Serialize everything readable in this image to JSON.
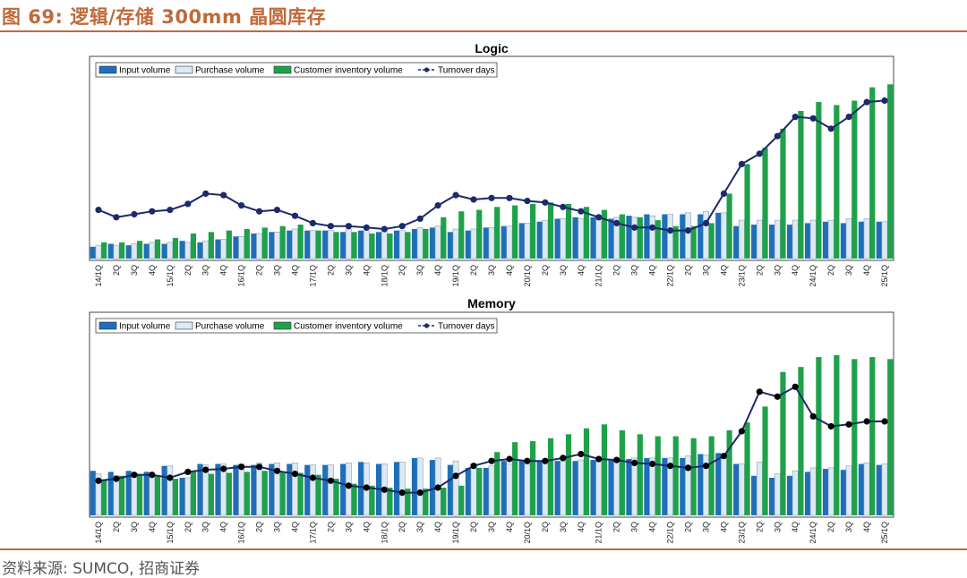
{
  "header": {
    "title": "图 69: 逻辑/存储 300mm 晶圆库存"
  },
  "footer": {
    "source": "资料来源: SUMCO, 招商证券"
  },
  "colors": {
    "accent": "#c0693a",
    "input": "#1f6fb8",
    "purchase": "#dde9f4",
    "inventory": "#1fa14a",
    "turnover": "#1b2a6b"
  },
  "chart_data": [
    {
      "type": "bar",
      "title": "Logic",
      "legend": [
        "Input volume",
        "Purchase volume",
        "Customer inventory volume",
        "Turnover days"
      ],
      "legend_placement": "top-left",
      "categories": [
        "14/1Q",
        "2Q",
        "3Q",
        "4Q",
        "15/1Q",
        "2Q",
        "3Q",
        "4Q",
        "16/1Q",
        "2Q",
        "3Q",
        "4Q",
        "17/1Q",
        "2Q",
        "3Q",
        "4Q",
        "18/1Q",
        "2Q",
        "3Q",
        "4Q",
        "19/1Q",
        "2Q",
        "3Q",
        "4Q",
        "20/1Q",
        "2Q",
        "3Q",
        "4Q",
        "21/1Q",
        "2Q",
        "3Q",
        "4Q",
        "22/1Q",
        "2Q",
        "3Q",
        "4Q",
        "23/1Q",
        "2Q",
        "3Q",
        "4Q",
        "24/1Q",
        "2Q",
        "3Q",
        "4Q",
        "25/1Q"
      ],
      "series": [
        {
          "name": "Input volume",
          "values": [
            8,
            10,
            9,
            10,
            10,
            12,
            11,
            13,
            15,
            17,
            18,
            19,
            19,
            19,
            18,
            19,
            18,
            19,
            20,
            21,
            18,
            19,
            21,
            22,
            24,
            25,
            27,
            28,
            28,
            27,
            29,
            30,
            30,
            30,
            30,
            31,
            22,
            23,
            23,
            23,
            24,
            25,
            24,
            25,
            25
          ]
        },
        {
          "name": "Purchase volume",
          "values": [
            9,
            9,
            10,
            11,
            11,
            11,
            12,
            13,
            15,
            17,
            18,
            20,
            19,
            19,
            20,
            19,
            19,
            19,
            21,
            22,
            20,
            20,
            21,
            22,
            24,
            26,
            27,
            27,
            28,
            28,
            28,
            29,
            30,
            31,
            32,
            31,
            26,
            26,
            26,
            26,
            26,
            26,
            27,
            27,
            25
          ]
        },
        {
          "name": "Customer inventory volume",
          "values": [
            11,
            11,
            12,
            13,
            14,
            17,
            18,
            19,
            20,
            21,
            22,
            23,
            19,
            18,
            18,
            17,
            17,
            18,
            20,
            28,
            32,
            33,
            35,
            36,
            37,
            38,
            37,
            35,
            33,
            30,
            28,
            26,
            22,
            22,
            24,
            44,
            64,
            75,
            88,
            100,
            106,
            104,
            107,
            116,
            118
          ]
        },
        {
          "name": "Turnover days",
          "values": [
            33,
            28,
            30,
            32,
            33,
            37,
            44,
            43,
            36,
            32,
            33,
            29,
            24,
            22,
            22,
            21,
            20,
            22,
            27,
            36,
            43,
            40,
            41,
            41,
            39,
            38,
            35,
            32,
            28,
            24,
            21,
            21,
            19,
            19,
            24,
            44,
            64,
            71,
            83,
            96,
            95,
            88,
            96,
            106,
            107
          ]
        }
      ],
      "ylim": [
        0,
        120
      ]
    },
    {
      "type": "bar",
      "title": "Memory",
      "legend": [
        "Input volume",
        "Purchase volume",
        "Customer inventory volume",
        "Turnover days"
      ],
      "legend_placement": "top-left",
      "categories": [
        "14/1Q",
        "2Q",
        "3Q",
        "4Q",
        "15/1Q",
        "2Q",
        "3Q",
        "4Q",
        "16/1Q",
        "2Q",
        "3Q",
        "4Q",
        "17/1Q",
        "2Q",
        "3Q",
        "4Q",
        "18/1Q",
        "2Q",
        "3Q",
        "4Q",
        "19/1Q",
        "2Q",
        "3Q",
        "4Q",
        "20/1Q",
        "2Q",
        "3Q",
        "4Q",
        "21/1Q",
        "2Q",
        "3Q",
        "4Q",
        "22/1Q",
        "2Q",
        "3Q",
        "4Q",
        "23/1Q",
        "2Q",
        "3Q",
        "4Q",
        "24/1Q",
        "2Q",
        "3Q",
        "4Q",
        "25/1Q"
      ],
      "series": [
        {
          "name": "Input volume",
          "values": [
            45,
            44,
            45,
            44,
            50,
            38,
            52,
            52,
            51,
            51,
            52,
            52,
            51,
            51,
            52,
            54,
            52,
            54,
            58,
            56,
            51,
            48,
            48,
            55,
            55,
            55,
            55,
            55,
            56,
            56,
            57,
            58,
            58,
            58,
            62,
            63,
            52,
            40,
            38,
            40,
            44,
            47,
            46,
            52,
            51
          ]
        },
        {
          "name": "Purchase volume",
          "values": [
            42,
            40,
            42,
            42,
            50,
            38,
            51,
            52,
            52,
            53,
            53,
            53,
            51,
            51,
            53,
            53,
            52,
            54,
            58,
            58,
            55,
            52,
            50,
            52,
            52,
            52,
            55,
            56,
            54,
            57,
            58,
            58,
            58,
            60,
            61,
            62,
            52,
            54,
            42,
            45,
            48,
            48,
            50,
            53,
            52
          ]
        },
        {
          "name": "Customer inventory volume",
          "values": [
            36,
            40,
            42,
            40,
            37,
            45,
            42,
            43,
            44,
            45,
            44,
            43,
            41,
            37,
            32,
            30,
            28,
            27,
            27,
            28,
            30,
            48,
            64,
            74,
            75,
            78,
            82,
            88,
            92,
            86,
            82,
            80,
            80,
            78,
            80,
            86,
            94,
            110,
            145,
            150,
            160,
            162,
            158,
            160,
            158
          ]
        },
        {
          "name": "Turnover days",
          "values": [
            35,
            37,
            41,
            41,
            38,
            44,
            46,
            47,
            49,
            49,
            45,
            42,
            38,
            35,
            30,
            28,
            26,
            23,
            23,
            28,
            40,
            50,
            55,
            57,
            55,
            55,
            58,
            62,
            57,
            56,
            53,
            52,
            50,
            48,
            50,
            60,
            85,
            125,
            120,
            130,
            100,
            90,
            92,
            95,
            95
          ]
        }
      ],
      "ylim": [
        0,
        180
      ]
    }
  ]
}
